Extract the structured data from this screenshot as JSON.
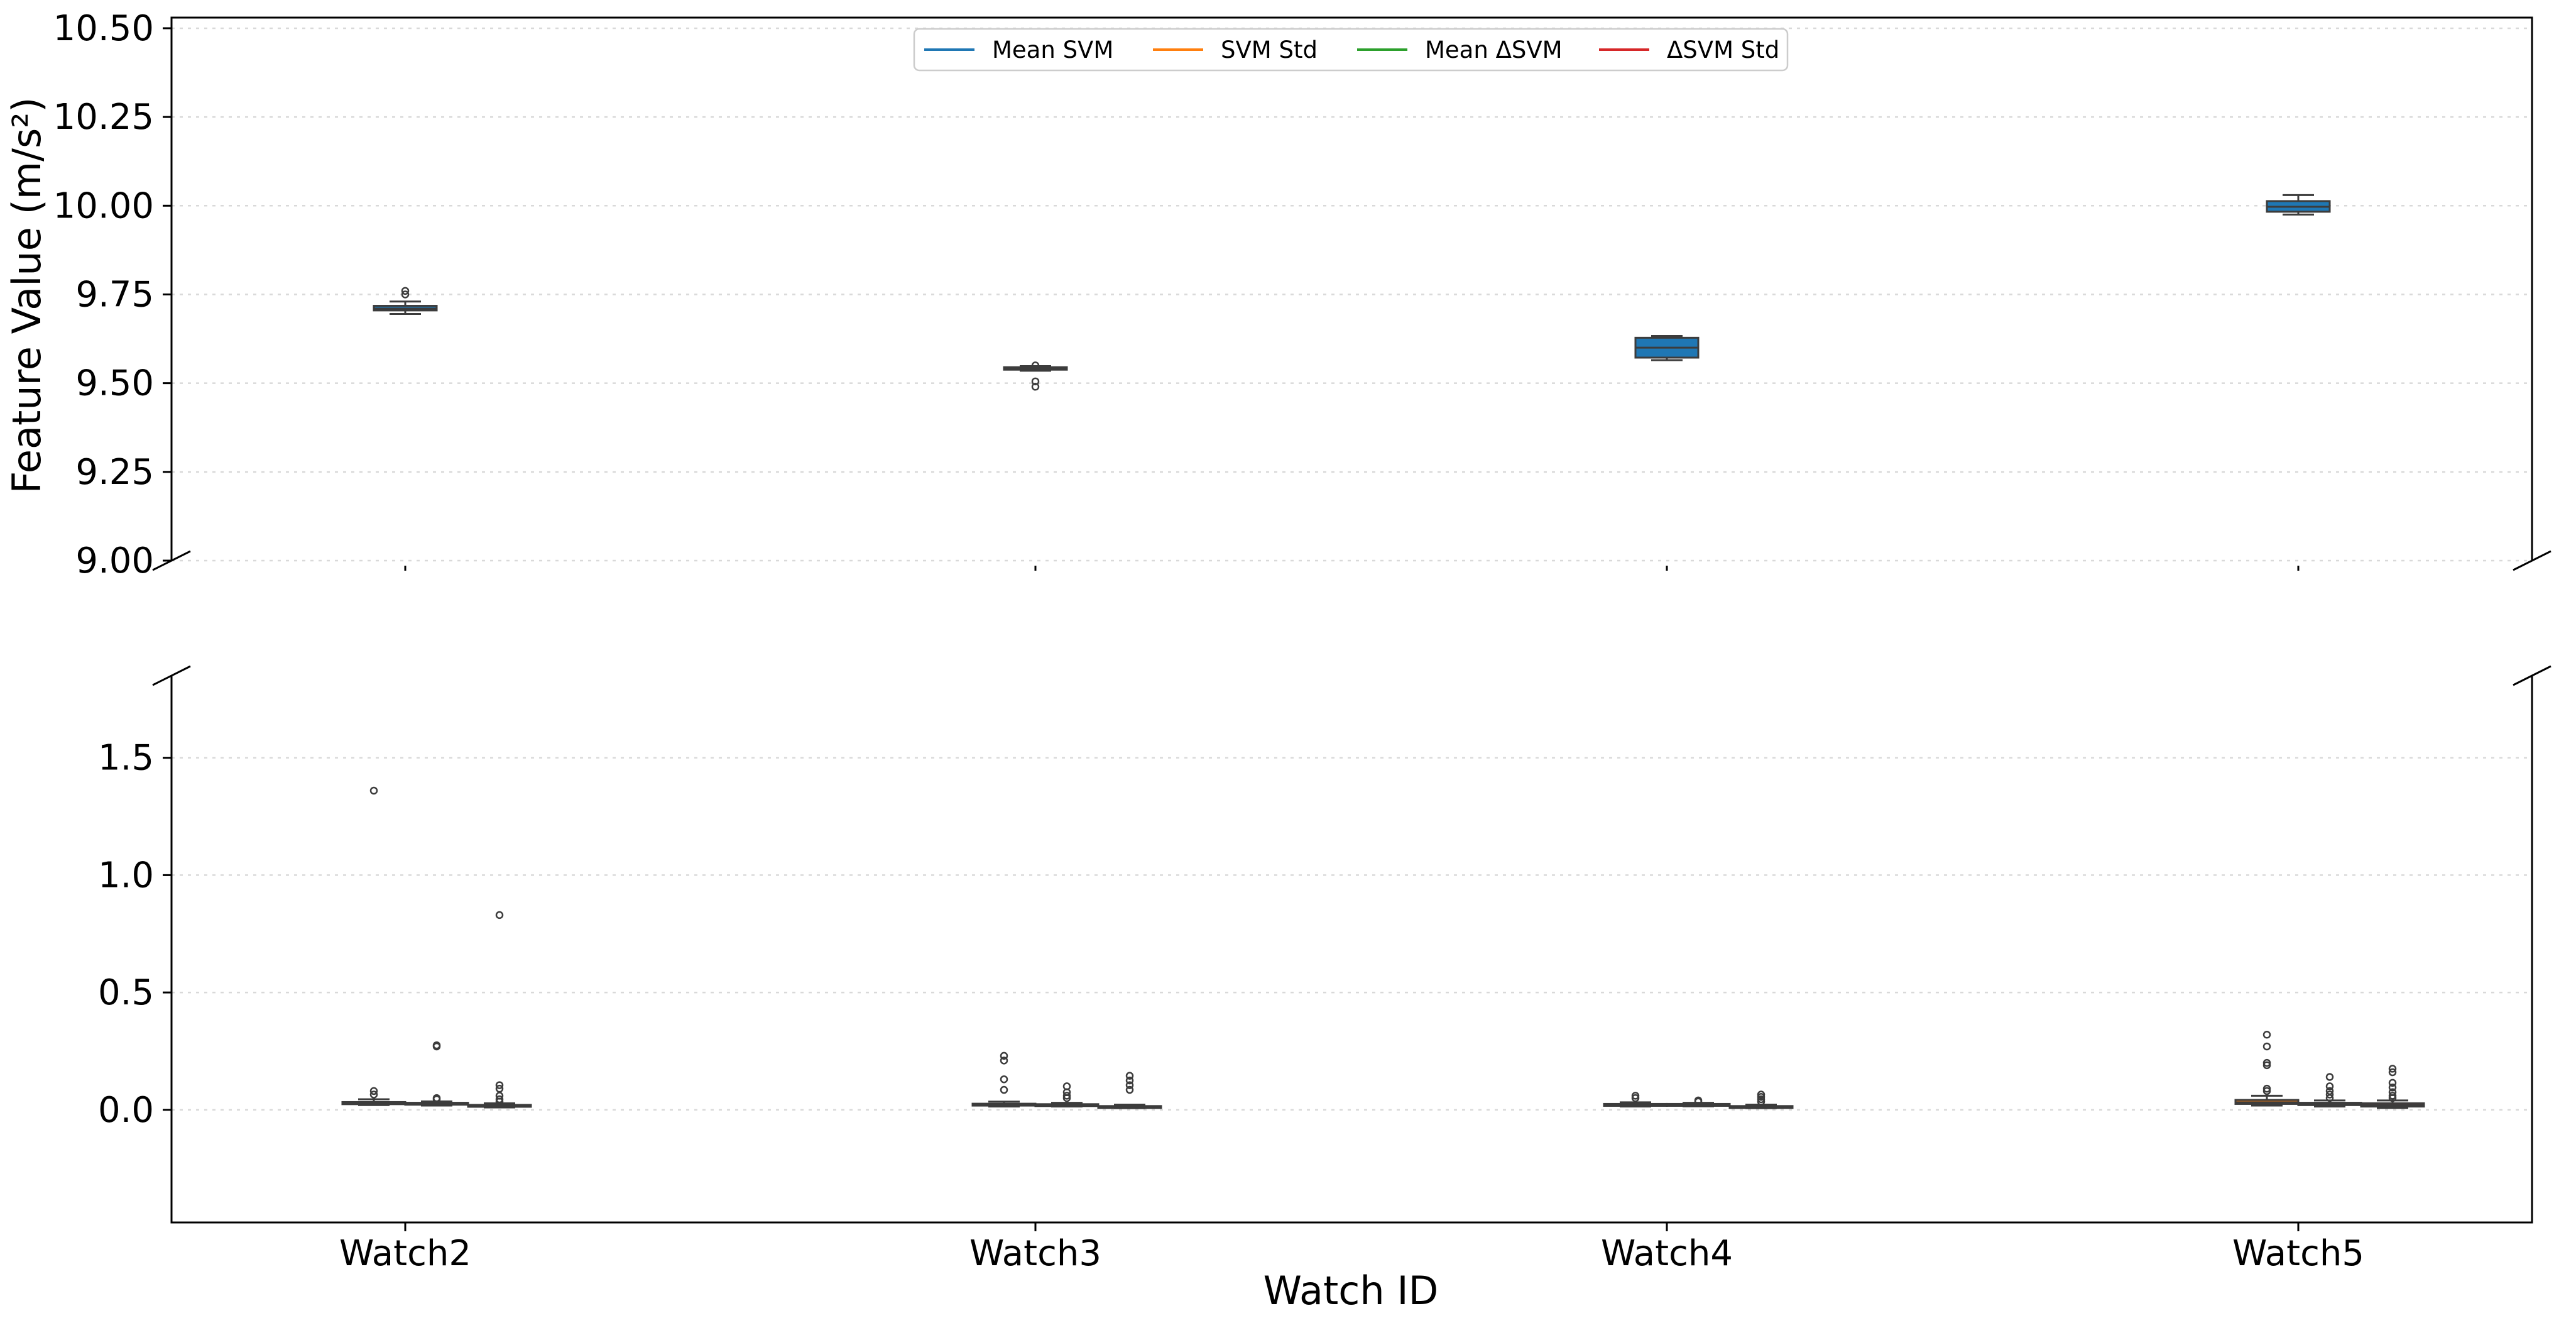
{
  "chart_data": {
    "type": "box",
    "xlabel": "Watch ID",
    "ylabel": "Feature Value (m/s²)",
    "categories": [
      "Watch2",
      "Watch3",
      "Watch4",
      "Watch5"
    ],
    "broken_axis": true,
    "upper_ylim": [
      9.0,
      10.53
    ],
    "lower_ylim": [
      -0.48,
      1.85
    ],
    "upper_yticks": [
      "9.00",
      "9.25",
      "9.50",
      "9.75",
      "10.00",
      "10.25",
      "10.50"
    ],
    "lower_yticks": [
      "0.0",
      "0.5",
      "1.0",
      "1.5"
    ],
    "grid": true,
    "legend_position": "top-center",
    "series": [
      {
        "name": "Mean SVM",
        "color": "#1f77b4",
        "boxes": [
          {
            "q1": 9.705,
            "median": 9.71,
            "q3": 9.718,
            "lo": 9.695,
            "hi": 9.73,
            "outliers": [
              9.75,
              9.76
            ]
          },
          {
            "q1": 9.538,
            "median": 9.542,
            "q3": 9.545,
            "lo": 9.535,
            "hi": 9.548,
            "outliers": [
              9.505,
              9.49,
              9.55
            ]
          },
          {
            "q1": 9.572,
            "median": 9.6,
            "q3": 9.628,
            "lo": 9.565,
            "hi": 9.633,
            "outliers": []
          },
          {
            "q1": 9.983,
            "median": 9.997,
            "q3": 10.013,
            "lo": 9.975,
            "hi": 10.03,
            "outliers": []
          }
        ]
      },
      {
        "name": "SVM Std",
        "color": "#ff7f0e",
        "boxes": [
          {
            "q1": 0.024,
            "median": 0.028,
            "q3": 0.033,
            "lo": 0.02,
            "hi": 0.045,
            "outliers": [
              1.36,
              0.065,
              0.08
            ]
          },
          {
            "q1": 0.018,
            "median": 0.022,
            "q3": 0.026,
            "lo": 0.014,
            "hi": 0.035,
            "outliers": [
              0.21,
              0.23,
              0.13,
              0.085
            ]
          },
          {
            "q1": 0.018,
            "median": 0.021,
            "q3": 0.025,
            "lo": 0.014,
            "hi": 0.032,
            "outliers": [
              0.05,
              0.06
            ]
          },
          {
            "q1": 0.025,
            "median": 0.032,
            "q3": 0.042,
            "lo": 0.018,
            "hi": 0.06,
            "outliers": [
              0.32,
              0.27,
              0.2,
              0.19,
              0.09,
              0.08
            ]
          }
        ]
      },
      {
        "name": "Mean ΔSVM",
        "color": "#2ca02c",
        "boxes": [
          {
            "q1": 0.022,
            "median": 0.026,
            "q3": 0.03,
            "lo": 0.018,
            "hi": 0.036,
            "outliers": [
              0.275,
              0.27,
              0.05,
              0.045
            ]
          },
          {
            "q1": 0.018,
            "median": 0.021,
            "q3": 0.024,
            "lo": 0.014,
            "hi": 0.03,
            "outliers": [
              0.1,
              0.075,
              0.06,
              0.05
            ]
          },
          {
            "q1": 0.019,
            "median": 0.022,
            "q3": 0.025,
            "lo": 0.015,
            "hi": 0.03,
            "outliers": [
              0.04,
              0.035
            ]
          },
          {
            "q1": 0.02,
            "median": 0.024,
            "q3": 0.03,
            "lo": 0.014,
            "hi": 0.04,
            "outliers": [
              0.14,
              0.1,
              0.08,
              0.065,
              0.05
            ]
          }
        ]
      },
      {
        "name": "ΔSVM Std",
        "color": "#d62728",
        "boxes": [
          {
            "q1": 0.013,
            "median": 0.017,
            "q3": 0.021,
            "lo": 0.01,
            "hi": 0.028,
            "outliers": [
              0.83,
              0.105,
              0.09,
              0.06,
              0.045,
              0.035
            ]
          },
          {
            "q1": 0.01,
            "median": 0.013,
            "q3": 0.016,
            "lo": 0.007,
            "hi": 0.022,
            "outliers": [
              0.145,
              0.125,
              0.105,
              0.085
            ]
          },
          {
            "q1": 0.01,
            "median": 0.013,
            "q3": 0.016,
            "lo": 0.007,
            "hi": 0.022,
            "outliers": [
              0.065,
              0.055,
              0.045,
              0.035
            ]
          },
          {
            "q1": 0.014,
            "median": 0.02,
            "q3": 0.028,
            "lo": 0.008,
            "hi": 0.04,
            "outliers": [
              0.175,
              0.16,
              0.115,
              0.095,
              0.075,
              0.06,
              0.05
            ]
          }
        ]
      }
    ]
  }
}
